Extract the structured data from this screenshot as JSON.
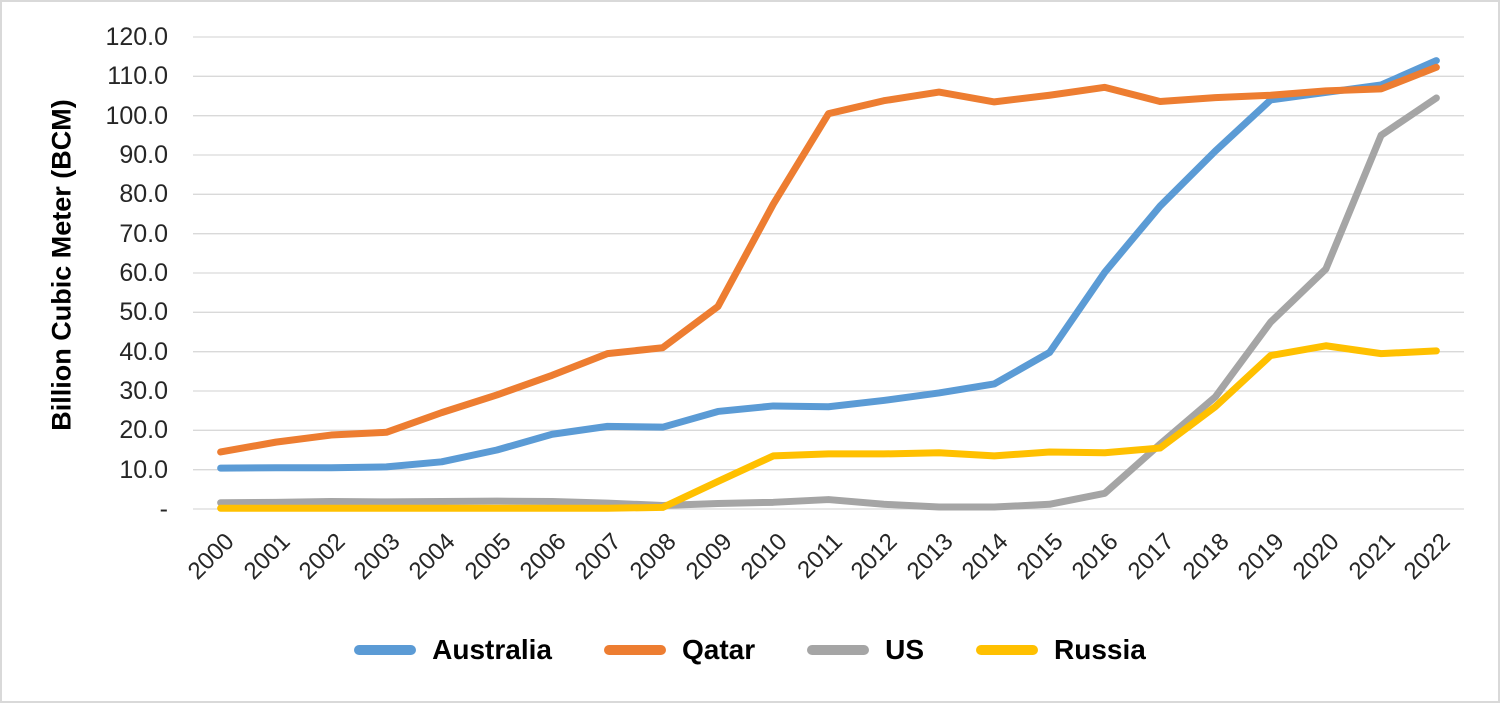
{
  "y_axis": {
    "title": "Billion Cubic Meter (BCM)",
    "ticks": [
      "120.0",
      "110.0",
      "100.0",
      "90.0",
      "80.0",
      "70.0",
      "60.0",
      "50.0",
      "40.0",
      "30.0",
      "20.0",
      "10.0",
      "-"
    ]
  },
  "x_axis": {
    "categories": [
      "2000",
      "2001",
      "2002",
      "2003",
      "2004",
      "2005",
      "2006",
      "2007",
      "2008",
      "2009",
      "2010",
      "2011",
      "2012",
      "2013",
      "2014",
      "2015",
      "2016",
      "2017",
      "2018",
      "2019",
      "2020",
      "2021",
      "2022"
    ]
  },
  "chart_data": {
    "type": "line",
    "title": "",
    "xlabel": "",
    "ylabel": "Billion Cubic Meter (BCM)",
    "ylim": [
      0,
      120
    ],
    "y_tick_step": 10,
    "grid": "horizontal-only",
    "gridline_color": "#d9d9d9",
    "legend_position": "bottom-center",
    "categories": [
      2000,
      2001,
      2002,
      2003,
      2004,
      2005,
      2006,
      2007,
      2008,
      2009,
      2010,
      2011,
      2012,
      2013,
      2014,
      2015,
      2016,
      2017,
      2018,
      2019,
      2020,
      2021,
      2022
    ],
    "series": [
      {
        "name": "Australia",
        "color": "#5B9BD5",
        "values": [
          10.4,
          10.5,
          10.5,
          10.7,
          12.0,
          15.0,
          19.0,
          21.0,
          20.8,
          24.8,
          26.2,
          26.0,
          27.6,
          29.5,
          31.8,
          39.8,
          60.2,
          77.0,
          91.0,
          104.0,
          105.9,
          107.8,
          114.0
        ]
      },
      {
        "name": "Qatar",
        "color": "#ED7D31",
        "values": [
          14.5,
          17.0,
          18.8,
          19.5,
          24.5,
          29.0,
          34.0,
          39.5,
          41.0,
          51.5,
          77.5,
          100.5,
          103.8,
          106.0,
          103.5,
          105.2,
          107.2,
          103.6,
          104.6,
          105.2,
          106.3,
          106.8,
          112.3
        ]
      },
      {
        "name": "US",
        "color": "#A5A5A5",
        "values": [
          1.6,
          1.7,
          1.9,
          1.8,
          1.9,
          2.0,
          1.9,
          1.5,
          0.9,
          1.4,
          1.7,
          2.4,
          1.2,
          0.5,
          0.5,
          1.2,
          4.0,
          16.5,
          28.5,
          47.5,
          61.0,
          95.0,
          104.5
        ]
      },
      {
        "name": "Russia",
        "color": "#FFC000",
        "values": [
          0.2,
          0.2,
          0.2,
          0.2,
          0.2,
          0.2,
          0.2,
          0.2,
          0.4,
          7.0,
          13.5,
          14.0,
          14.0,
          14.3,
          13.5,
          14.5,
          14.3,
          15.5,
          26.0,
          39.0,
          41.5,
          39.5,
          40.2
        ]
      }
    ]
  }
}
